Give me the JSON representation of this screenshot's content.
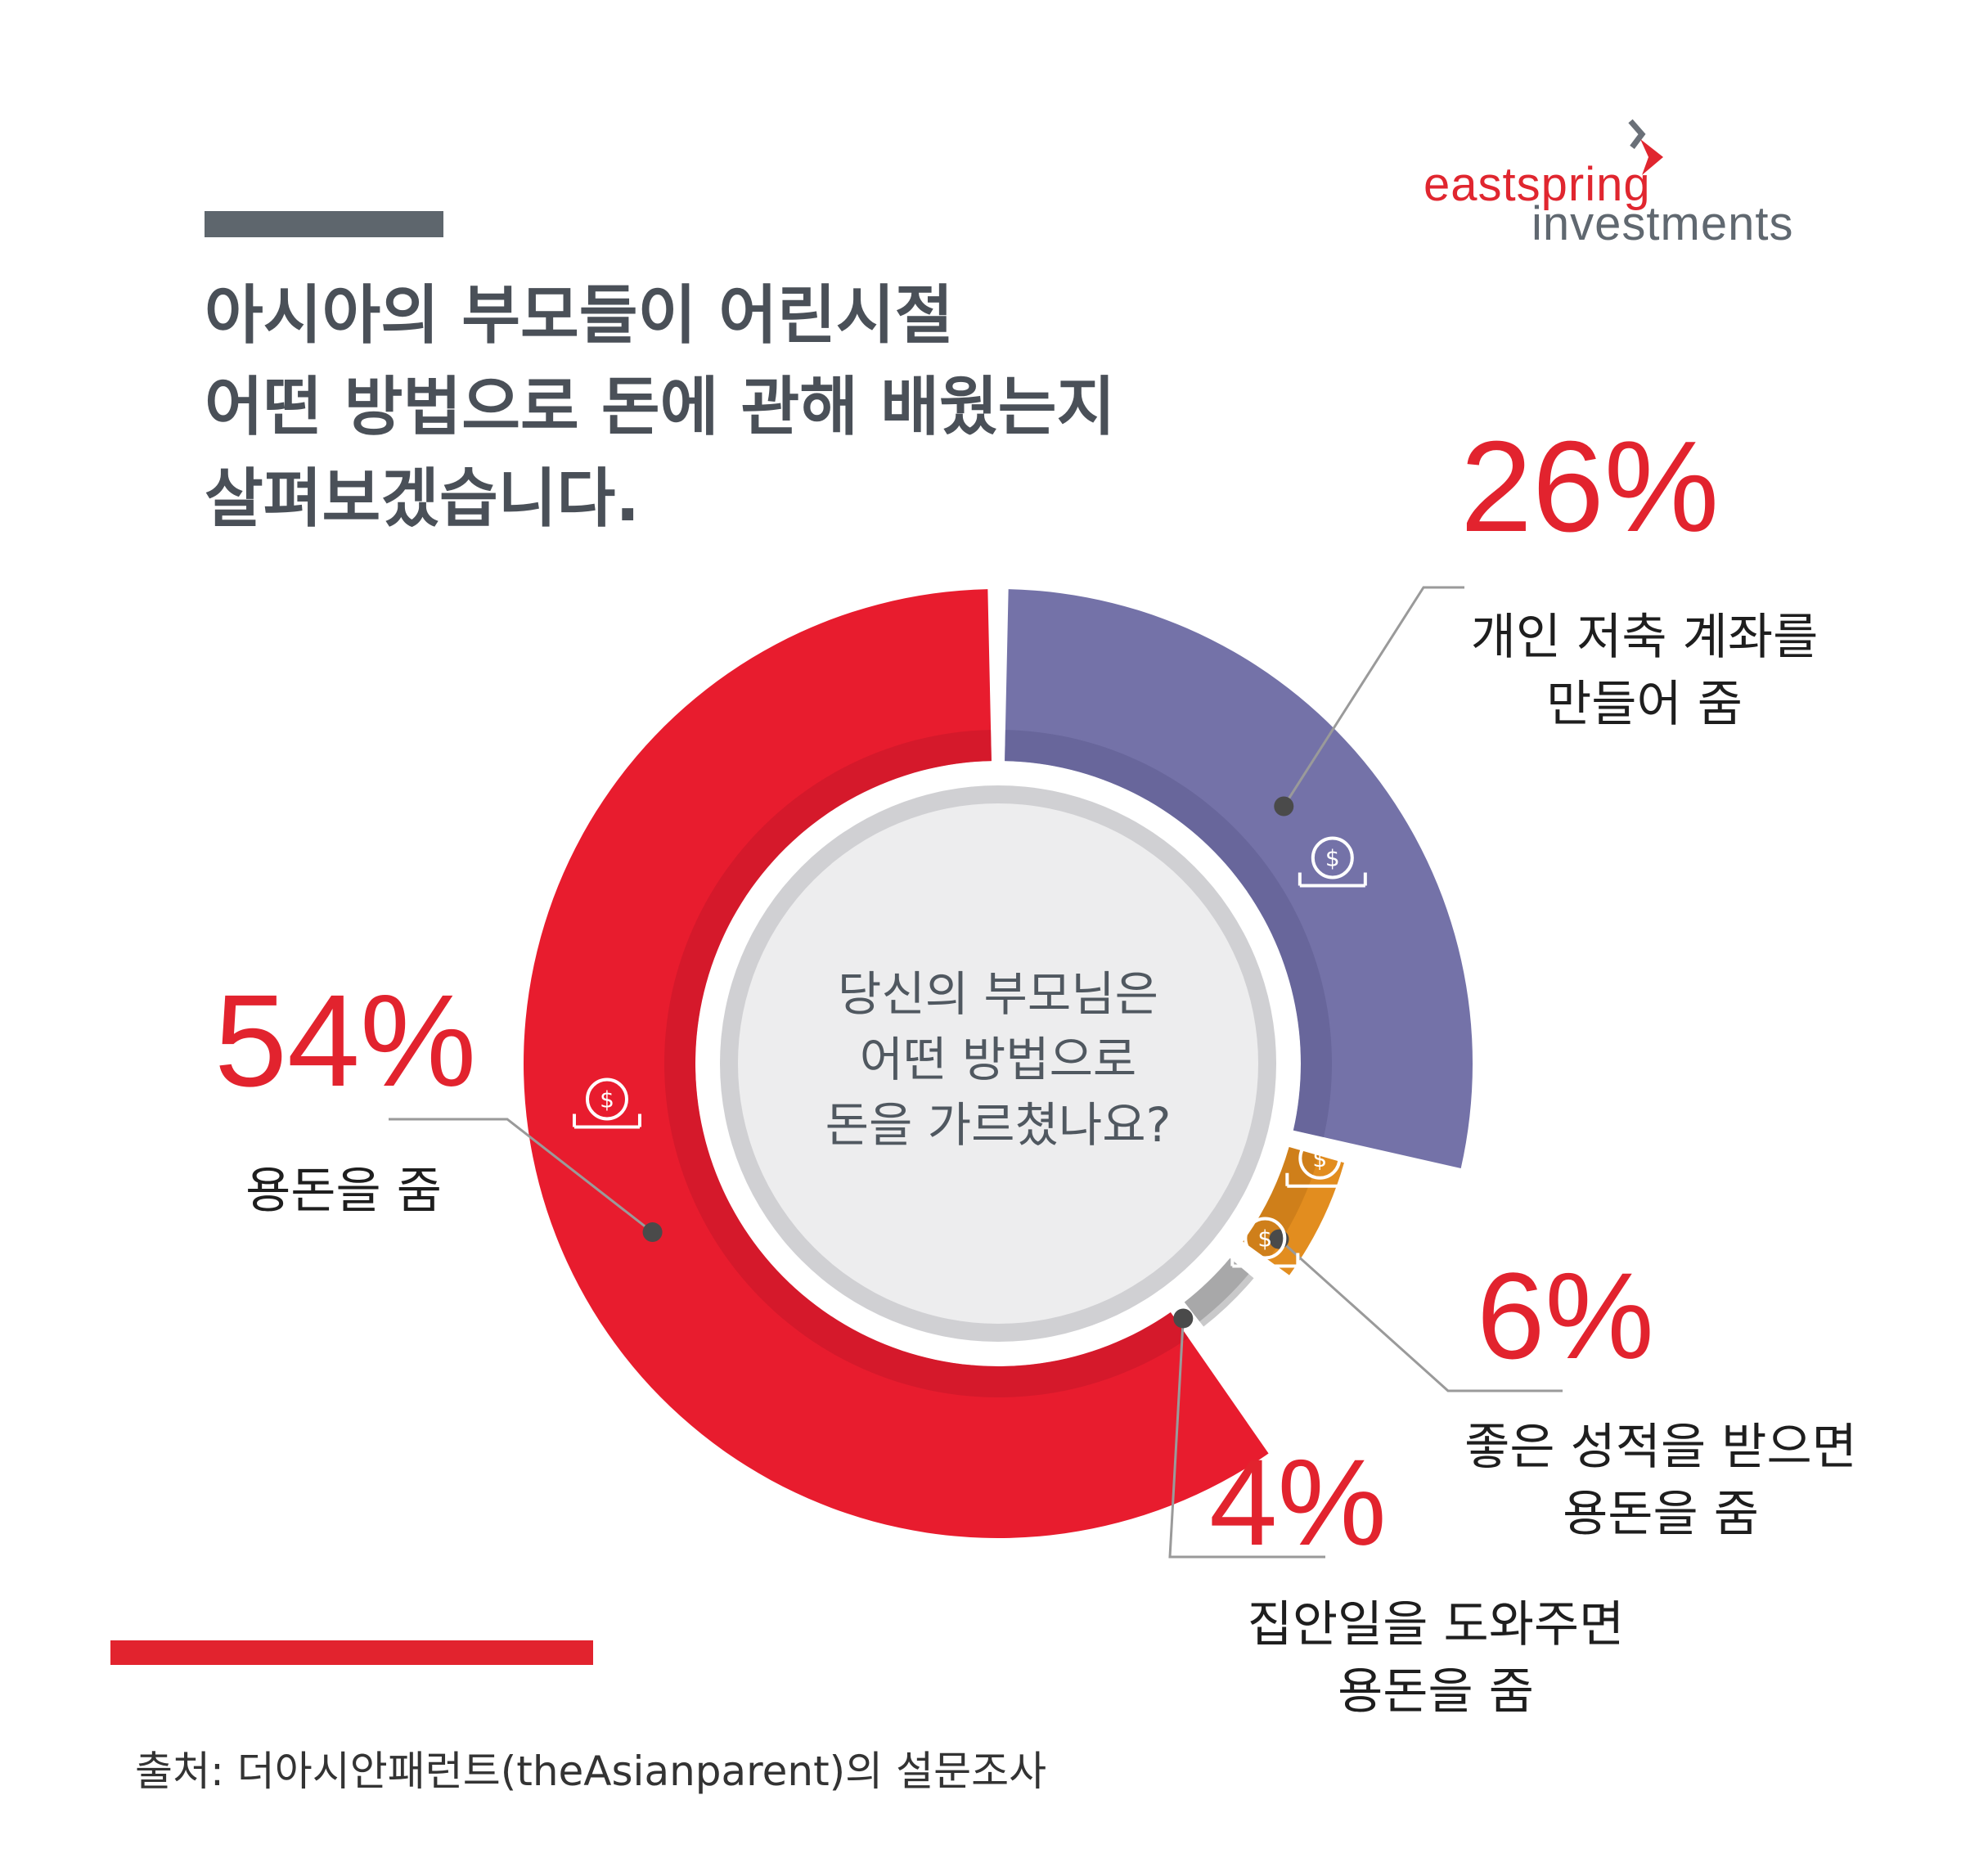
{
  "title": {
    "line1": "아시아의 부모들이 어린시절",
    "line2": "어떤 방법으로 돈에 관해 배웠는지",
    "line3": "살펴보겠습니다."
  },
  "logo": {
    "line1": "eastspring",
    "line2": "investments"
  },
  "center_question": {
    "line1": "당신의 부모님은",
    "line2": "어떤 방법으로",
    "line3": "돈을 가르쳤나요?"
  },
  "source": "출처: 더아시안패런트(theAsianparent)의 설문조사",
  "colors": {
    "red": "#e81c2e",
    "purple": "#7472a8",
    "orange": "#e28d1f",
    "gray": "#b5b5b7",
    "accent_text": "#e2232e"
  },
  "chart_data": {
    "type": "pie",
    "categories": [
      "용돈을 줌",
      "개인 저축 계좌를 만들어 줌",
      "좋은 성적을 받으면 용돈을 줌",
      "집안일을 도와주면 용돈을 줌"
    ],
    "values": [
      54,
      26,
      6,
      4
    ],
    "value_labels": [
      "54%",
      "26%",
      "6%",
      "4%"
    ],
    "label_lines": [
      [
        "용돈을 줌"
      ],
      [
        "개인 저축 계좌를",
        "만들어 줌"
      ],
      [
        "좋은 성적을 받으면",
        "용돈을 줌"
      ],
      [
        "집안일을 도와주면",
        "용돈을 줌"
      ]
    ],
    "icons": [
      "cash-hand-icon",
      "money-bag-hand-icon",
      "award-medal-icon",
      "coin-hands-icon"
    ]
  }
}
